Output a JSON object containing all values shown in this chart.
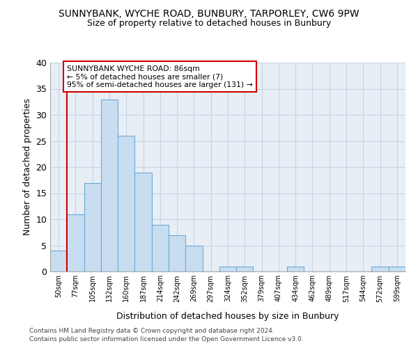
{
  "title": "SUNNYBANK, WYCHE ROAD, BUNBURY, TARPORLEY, CW6 9PW",
  "subtitle": "Size of property relative to detached houses in Bunbury",
  "xlabel": "Distribution of detached houses by size in Bunbury",
  "ylabel": "Number of detached properties",
  "bin_labels": [
    "50sqm",
    "77sqm",
    "105sqm",
    "132sqm",
    "160sqm",
    "187sqm",
    "214sqm",
    "242sqm",
    "269sqm",
    "297sqm",
    "324sqm",
    "352sqm",
    "379sqm",
    "407sqm",
    "434sqm",
    "462sqm",
    "489sqm",
    "517sqm",
    "544sqm",
    "572sqm",
    "599sqm"
  ],
  "bar_values": [
    4,
    11,
    17,
    33,
    26,
    19,
    9,
    7,
    5,
    0,
    1,
    1,
    0,
    0,
    1,
    0,
    0,
    0,
    0,
    1,
    1
  ],
  "bar_color": "#c9ddf0",
  "bar_edgecolor": "#6aaad4",
  "grid_color": "#c8d4e3",
  "background_color": "#e8eef6",
  "vline_x_idx": 1,
  "vline_color": "#cc0000",
  "annotation_text": "SUNNYBANK WYCHE ROAD: 86sqm\n← 5% of detached houses are smaller (7)\n95% of semi-detached houses are larger (131) →",
  "annotation_box_facecolor": "#ffffff",
  "annotation_box_edgecolor": "#cc0000",
  "ylim": [
    0,
    40
  ],
  "yticks": [
    0,
    5,
    10,
    15,
    20,
    25,
    30,
    35,
    40
  ],
  "footer_line1": "Contains HM Land Registry data © Crown copyright and database right 2024.",
  "footer_line2": "Contains public sector information licensed under the Open Government Licence v3.0."
}
